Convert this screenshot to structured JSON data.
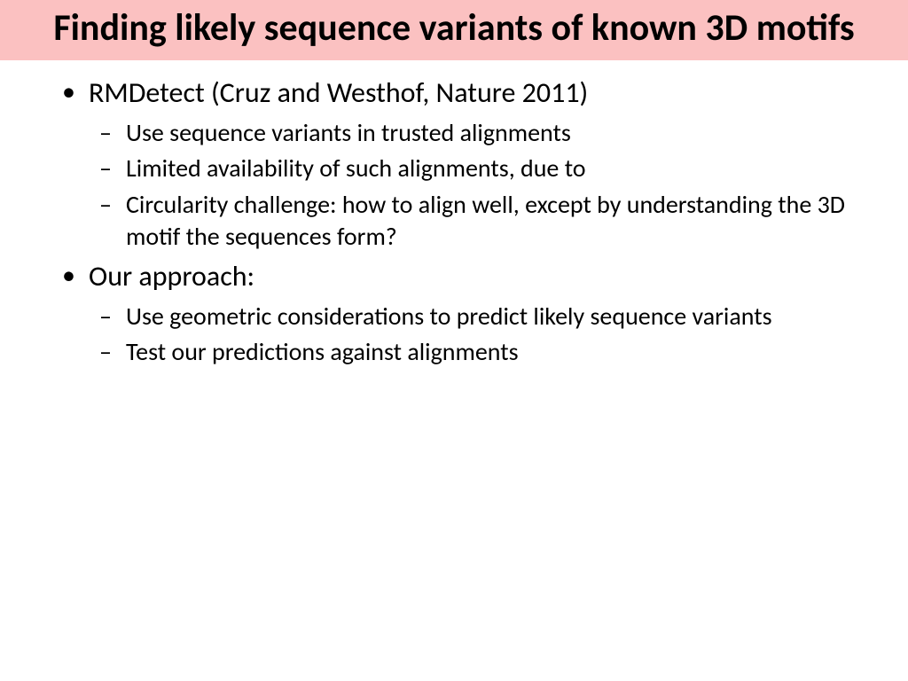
{
  "title": "Finding likely sequence variants of known 3D motifs",
  "title_banner_color": "#fbc1c1",
  "title_fontsize": 42,
  "title_fontweight": "bold",
  "body_fontsize_l1": 32,
  "body_fontsize_l2": 28,
  "text_color": "#000000",
  "background_color": "#ffffff",
  "bullets": [
    {
      "text": "RMDetect (Cruz and Westhof, Nature 2011)",
      "sub": [
        "Use sequence variants in trusted alignments",
        "Limited availability of such alignments, due to",
        "Circularity challenge:  how to align well, except by understanding the 3D motif the sequences form?"
      ]
    },
    {
      "text": "Our approach:",
      "sub": [
        "Use geometric considerations to predict likely sequence variants",
        "Test our predictions against alignments"
      ]
    }
  ]
}
